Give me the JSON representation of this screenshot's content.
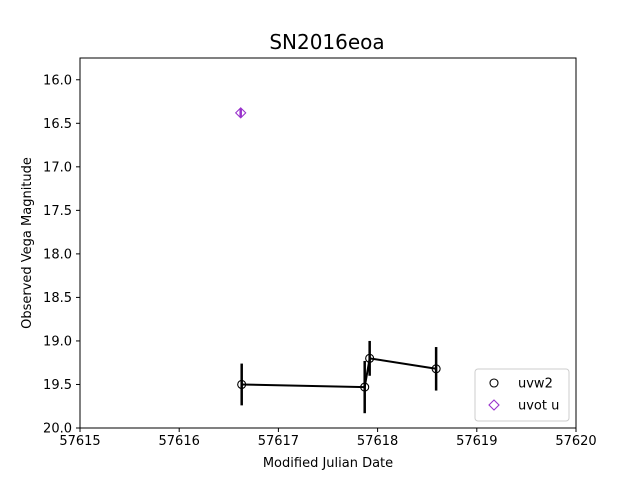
{
  "chart_data": {
    "type": "scatter",
    "title": "SN2016eoa",
    "xlabel": "Modified Julian Date",
    "ylabel": "Observed Vega Magnitude",
    "xlim": [
      57615,
      57620
    ],
    "ylim": [
      20.0,
      15.75
    ],
    "y_inverted": true,
    "xticks": [
      "57615",
      "57616",
      "57617",
      "57618",
      "57619",
      "57620"
    ],
    "xtick_values": [
      57615,
      57616,
      57617,
      57618,
      57619,
      57620
    ],
    "yticks": [
      "16.0",
      "16.5",
      "17.0",
      "17.5",
      "18.0",
      "18.5",
      "19.0",
      "19.5",
      "20.0"
    ],
    "ytick_values": [
      16.0,
      16.5,
      17.0,
      17.5,
      18.0,
      18.5,
      19.0,
      19.5,
      20.0
    ],
    "grid": false,
    "legend_position": "lower-right",
    "series": [
      {
        "name": "uvw2",
        "marker": "circle",
        "color": "#000000",
        "connected": true,
        "x": [
          57616.63,
          57617.87,
          57617.92,
          57618.59
        ],
        "y": [
          19.5,
          19.53,
          19.2,
          19.32
        ],
        "yerr": [
          0.24,
          0.3,
          0.2,
          0.25
        ]
      },
      {
        "name": "uvot u",
        "marker": "diamond",
        "color": "#9932CC",
        "connected": false,
        "x": [
          57616.62
        ],
        "y": [
          16.38
        ],
        "yerr": [
          0.05
        ]
      }
    ]
  }
}
